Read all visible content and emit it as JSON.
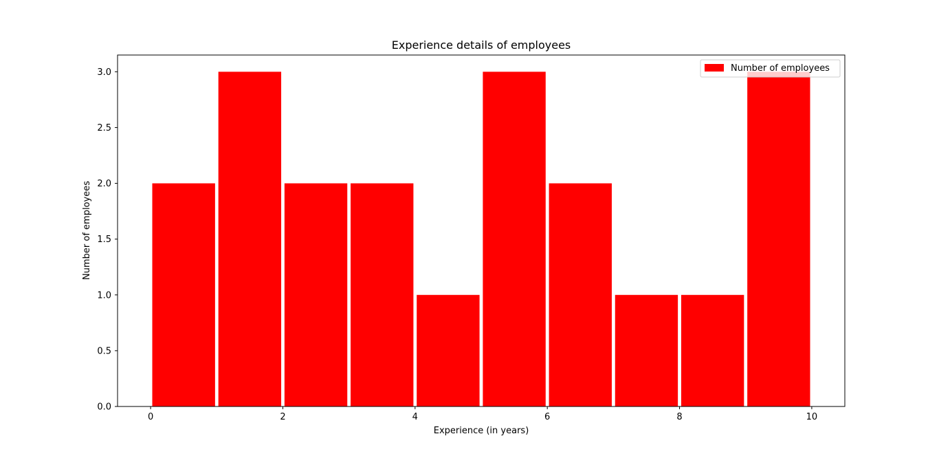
{
  "chart_data": {
    "type": "bar",
    "title": "Experience details of employees",
    "xlabel": "Experience (in years)",
    "ylabel": "Number of employees",
    "bins": [
      [
        0,
        1
      ],
      [
        1,
        2
      ],
      [
        2,
        3
      ],
      [
        3,
        4
      ],
      [
        4,
        5
      ],
      [
        5,
        6
      ],
      [
        6,
        7
      ],
      [
        7,
        8
      ],
      [
        8,
        9
      ],
      [
        9,
        10
      ]
    ],
    "values": [
      2,
      3,
      2,
      2,
      1,
      3,
      2,
      1,
      1,
      3
    ],
    "xlim": [
      -0.5,
      10.5
    ],
    "ylim": [
      0,
      3.15
    ],
    "x_ticks": [
      0,
      2,
      4,
      6,
      8,
      10
    ],
    "x_tick_labels": [
      "0",
      "2",
      "4",
      "6",
      "8",
      "10"
    ],
    "y_ticks": [
      0,
      0.5,
      1.0,
      1.5,
      2.0,
      2.5,
      3.0
    ],
    "y_tick_labels": [
      "0.0",
      "0.5",
      "1.0",
      "1.5",
      "2.0",
      "2.5",
      "3.0"
    ],
    "series": [
      {
        "name": "Number of employees",
        "color": "#ff0000"
      }
    ],
    "legend_position": "top-right",
    "grid": false
  }
}
